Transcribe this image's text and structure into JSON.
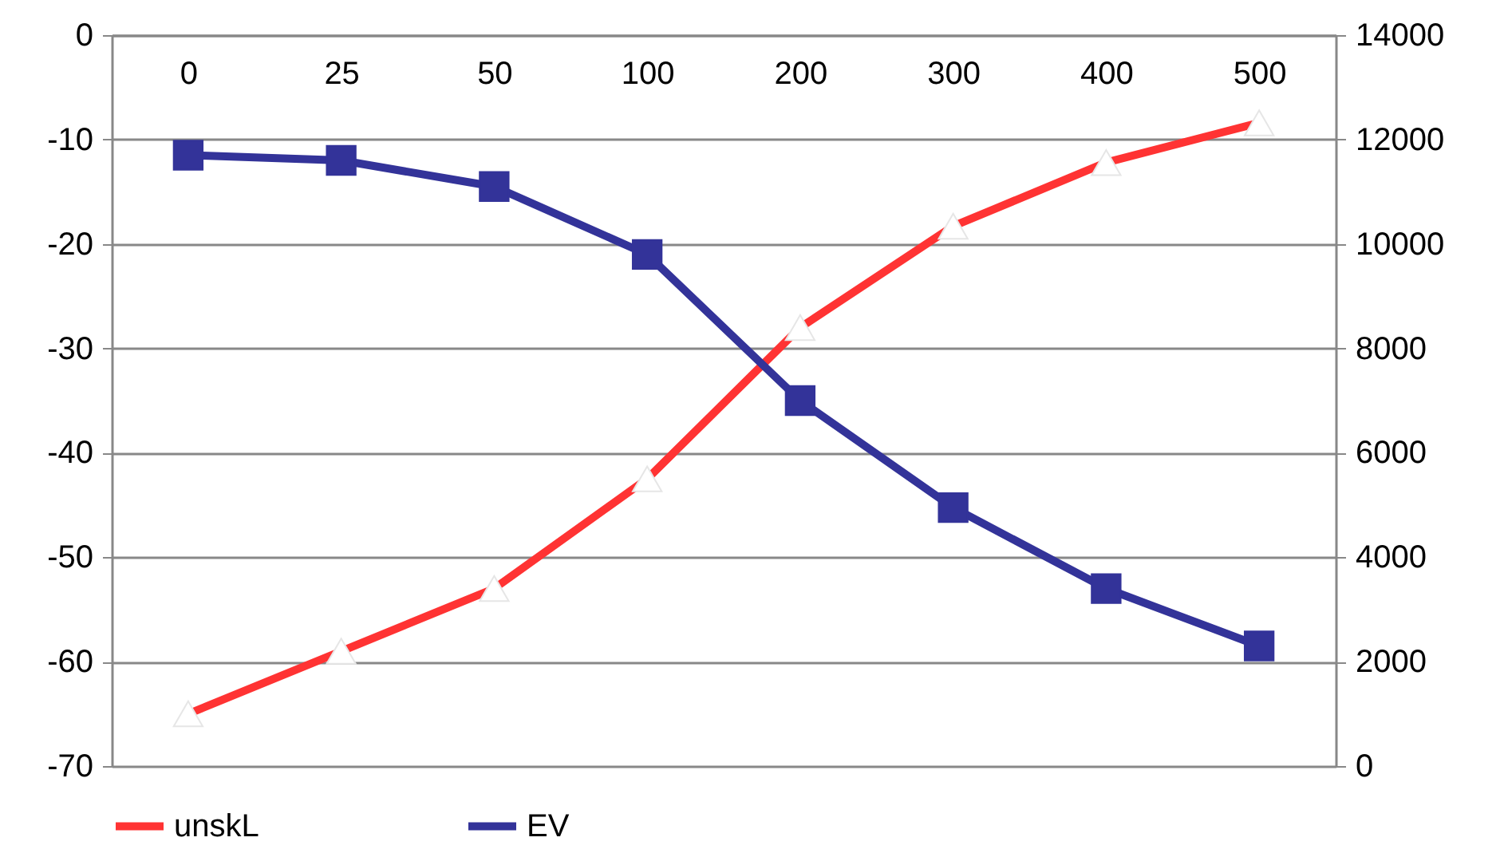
{
  "chart_data": {
    "type": "line",
    "categories": [
      "0",
      "25",
      "50",
      "100",
      "200",
      "300",
      "400",
      "500"
    ],
    "series": [
      {
        "name": "unskL",
        "color": "#ff3333",
        "marker": "triangle",
        "values": [
          -65,
          -59,
          -53,
          -42.5,
          -28,
          -18.3,
          -12.2,
          -8.4
        ]
      },
      {
        "name": "EV",
        "color": "#333399",
        "marker": "square",
        "axis": "y2",
        "values": [
          11700,
          11600,
          11100,
          9800,
          7000,
          4950,
          3400,
          2300
        ]
      }
    ],
    "ylim": [
      -70,
      0
    ],
    "yticks": [
      -70,
      -60,
      -50,
      -40,
      -30,
      -20,
      -10,
      0
    ],
    "y2lim": [
      0,
      14000
    ],
    "y2ticks": [
      0,
      2000,
      4000,
      6000,
      8000,
      10000,
      12000,
      14000
    ],
    "grid": "y",
    "legend": "bottom"
  }
}
